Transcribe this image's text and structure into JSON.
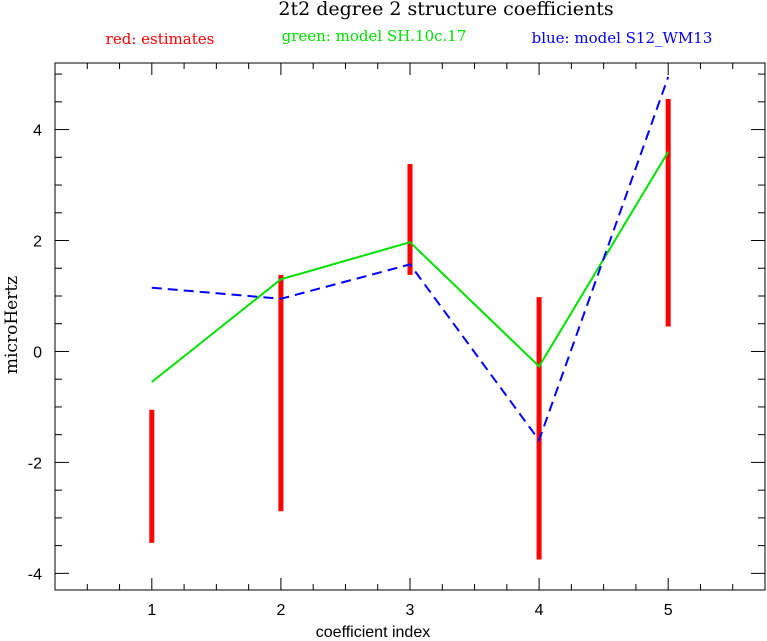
{
  "chart_data": {
    "type": "line",
    "title": "2t2 degree 2 structure coefficients",
    "xlabel": "coefficient index",
    "ylabel": "microHertz",
    "xlim": [
      0.25,
      5.75
    ],
    "ylim": [
      -4.3,
      5.2
    ],
    "x_ticks": [
      1,
      2,
      3,
      4,
      5
    ],
    "y_ticks": [
      -4,
      -2,
      0,
      2,
      4
    ],
    "y_minor_step": 0.5,
    "x_minor_step": 0.25,
    "grid": false,
    "legend": [
      {
        "text": "red: estimates",
        "color": "#ff0000"
      },
      {
        "text": "green: model SH.10c.17",
        "color": "#00e000"
      },
      {
        "text": "blue: model S12_WM13",
        "color": "#0000ff"
      }
    ],
    "error_bars": {
      "color": "#ff0000",
      "x": [
        1,
        2,
        3,
        4,
        5
      ],
      "low": [
        -3.45,
        -2.88,
        1.38,
        -3.75,
        0.45
      ],
      "high": [
        -1.05,
        1.38,
        3.38,
        0.98,
        4.55
      ]
    },
    "series": [
      {
        "color": "#00e000",
        "style": "solid",
        "x": [
          1,
          2,
          3,
          4,
          5
        ],
        "values": [
          -0.55,
          1.3,
          1.97,
          -0.27,
          3.6
        ]
      },
      {
        "color": "#0000ff",
        "style": "dashed",
        "x": [
          1,
          2,
          3,
          4,
          5
        ],
        "values": [
          1.15,
          0.95,
          1.57,
          -1.6,
          4.95
        ]
      }
    ]
  }
}
